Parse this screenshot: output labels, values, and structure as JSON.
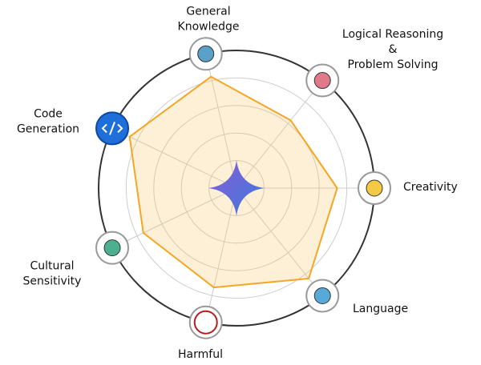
{
  "chart_data": {
    "type": "radar",
    "categories": [
      "Creativity",
      "Language",
      "Harmful",
      "Cultural\nSensitivity",
      "Code\nGeneration",
      "General\nKnowledge",
      "Logical Reasoning\n&\nProblem Solving"
    ],
    "values": [
      73,
      84,
      74,
      75,
      86,
      83,
      63
    ],
    "color": "#f5a623",
    "ylim": [
      0,
      100
    ],
    "yticks": [
      20,
      40,
      60,
      80,
      100
    ],
    "grid": true
  }
}
